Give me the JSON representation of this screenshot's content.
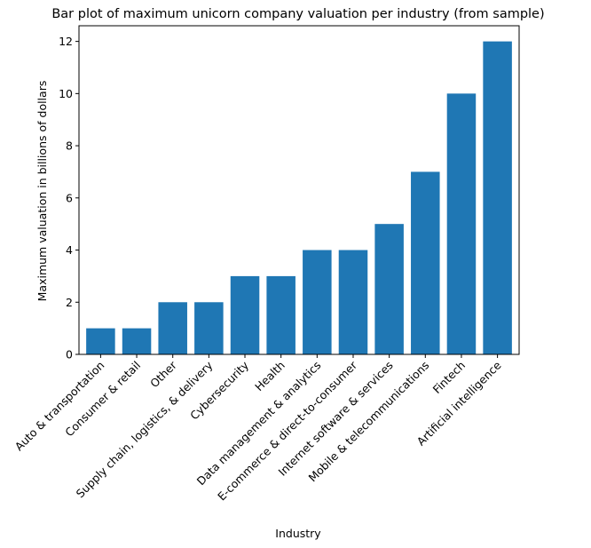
{
  "chart_data": {
    "type": "bar",
    "title": "Bar plot of maximum unicorn company valuation per industry (from sample)",
    "xlabel": "Industry",
    "ylabel": "Maximum valuation in billions of dollars",
    "categories": [
      "Auto & transportation",
      "Consumer & retail",
      "Other",
      "Supply chain, logistics, & delivery",
      "Cybersecurity",
      "Health",
      "Data management & analytics",
      "E-commerce & direct-to-consumer",
      "Internet software & services",
      "Mobile & telecommunications",
      "Fintech",
      "Artificial intelligence"
    ],
    "values": [
      1,
      1,
      2,
      2,
      3,
      3,
      4,
      4,
      5,
      7,
      10,
      12
    ],
    "ylim": [
      0,
      12.6
    ],
    "yticks": [
      0,
      2,
      4,
      6,
      8,
      10,
      12
    ],
    "grid": false,
    "colors": {
      "bar": "#1f77b4",
      "axis": "#000000",
      "background": "#ffffff"
    }
  }
}
